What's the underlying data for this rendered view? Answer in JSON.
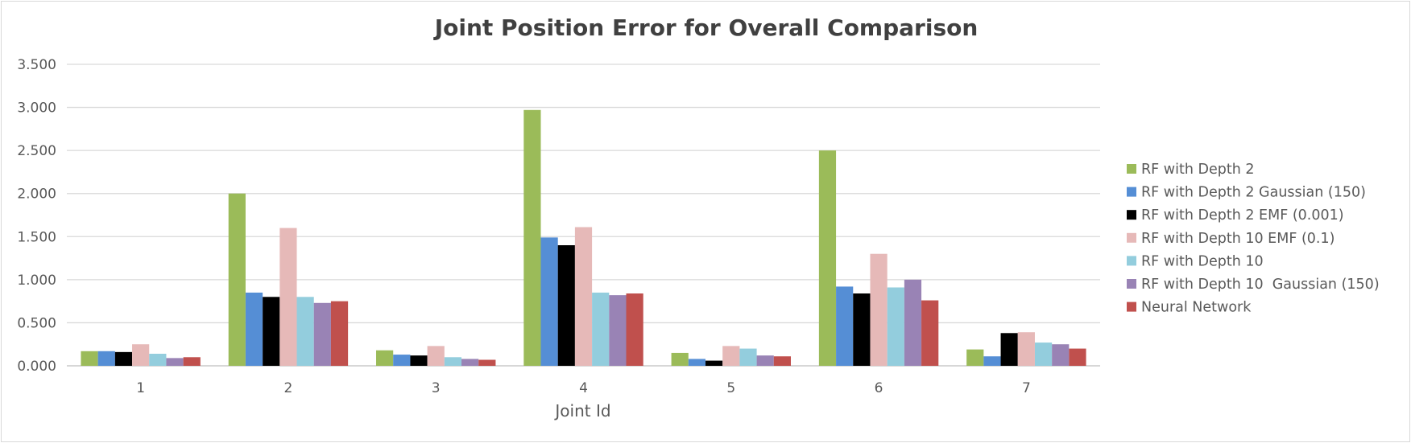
{
  "chart_data": {
    "type": "bar",
    "title": "Joint Position Error for Overall Comparison",
    "xlabel": "Joint Id",
    "ylabel": "",
    "categories": [
      "1",
      "2",
      "3",
      "4",
      "5",
      "6",
      "7"
    ],
    "ylim": [
      0,
      3.5
    ],
    "yticks": [
      "0.000",
      "0.500",
      "1.000",
      "1.500",
      "2.000",
      "2.500",
      "3.000",
      "3.500"
    ],
    "grid": true,
    "legend_position": "right",
    "series": [
      {
        "name": "RF with Depth 2",
        "color": "#9bbb59",
        "values": [
          0.17,
          2.0,
          0.18,
          2.97,
          0.15,
          2.5,
          0.19
        ]
      },
      {
        "name": "RF with Depth 2 Gaussian (150)",
        "color": "#558ed5",
        "values": [
          0.17,
          0.85,
          0.13,
          1.49,
          0.08,
          0.92,
          0.11
        ]
      },
      {
        "name": "RF with Depth 2 EMF (0.001)",
        "color": "#000000",
        "values": [
          0.16,
          0.8,
          0.12,
          1.4,
          0.06,
          0.84,
          0.38
        ]
      },
      {
        "name": "RF with Depth 10 EMF (0.1)",
        "color": "#e6b9b8",
        "values": [
          0.25,
          1.6,
          0.23,
          1.61,
          0.23,
          1.3,
          0.39
        ]
      },
      {
        "name": "RF with Depth 10",
        "color": "#93cddd",
        "values": [
          0.14,
          0.8,
          0.1,
          0.85,
          0.2,
          0.91,
          0.27
        ]
      },
      {
        "name": "RF with Depth 10  Gaussian (150)",
        "color": "#9983b5",
        "values": [
          0.09,
          0.73,
          0.08,
          0.82,
          0.12,
          1.0,
          0.25
        ]
      },
      {
        "name": "Neural Network",
        "color": "#c0504d",
        "values": [
          0.1,
          0.75,
          0.07,
          0.84,
          0.11,
          0.76,
          0.2
        ]
      }
    ]
  }
}
